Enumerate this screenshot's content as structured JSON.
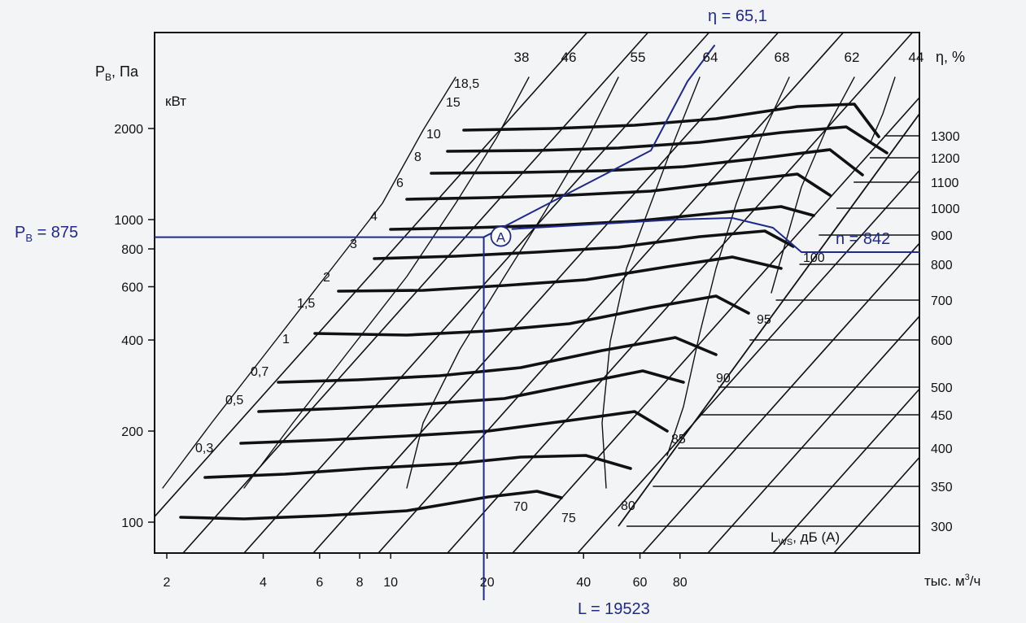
{
  "colors": {
    "background": "#f3f4f6",
    "ink": "#111111",
    "operating_point": "#1f2a8c"
  },
  "chart_data": {
    "type": "line",
    "subtype": "fan-performance-chart",
    "yaxis": {
      "label_main": "P",
      "label_sub": "В",
      "label_rest": ", Па",
      "scale": "log",
      "ticks": [
        100,
        200,
        400,
        600,
        800,
        1000,
        2000
      ]
    },
    "xaxis": {
      "label_pre": "тыс. м",
      "label_sup": "3",
      "label_post": "/ч",
      "scale": "log",
      "ticks": [
        2,
        4,
        6,
        8,
        10,
        20,
        40,
        60,
        80
      ]
    },
    "power_label": "кВт",
    "power_lines": [
      "0,3",
      "0,5",
      "0,7",
      "1",
      "1,5",
      "2",
      "3",
      "4",
      "6",
      "8",
      "10",
      "15",
      "18,5"
    ],
    "efficiency_label": "η, %",
    "efficiency_values": [
      "38",
      "46",
      "55",
      "64",
      "68",
      "62",
      "44"
    ],
    "speed_values_rpm": [
      "300",
      "350",
      "400",
      "450",
      "500",
      "600",
      "700",
      "800",
      "900",
      "1000",
      "1100",
      "1200",
      "1300"
    ],
    "noise_label_main": "L",
    "noise_label_sub": "WS",
    "noise_label_rest": ", дБ (А)",
    "noise_values": [
      "70",
      "75",
      "80",
      "85",
      "90",
      "95",
      "100"
    ],
    "operating_point": {
      "marker": "A",
      "pressure_text": "P",
      "pressure_sub": "В",
      "pressure_rest": " = 875",
      "flow_text": "L = 19523",
      "efficiency_text": "η = 65,1",
      "speed_text": "n = 842",
      "pressure_pa": 875,
      "flow_m3h": 19523,
      "efficiency_pct": 65.1,
      "speed_rpm": 842
    }
  }
}
